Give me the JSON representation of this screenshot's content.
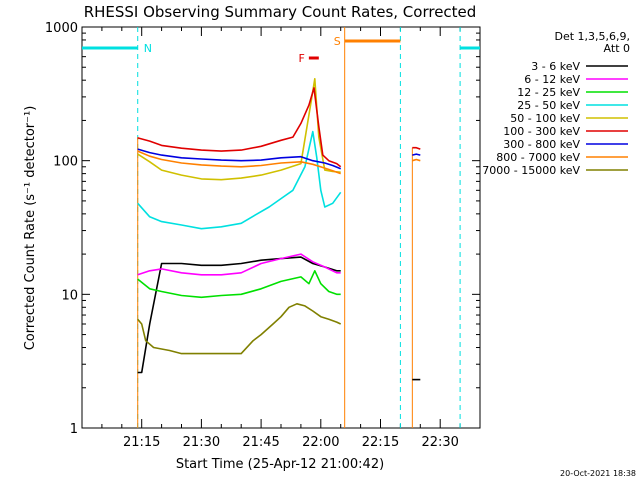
{
  "chart_data": {
    "type": "line",
    "title": "RHESSI Observing Summary Count Rates, Corrected",
    "xlabel": "Start Time (25-Apr-12 21:00:42)",
    "ylabel": "Corrected Count Rate (s⁻¹ detector⁻¹)",
    "yscale": "log",
    "ylim": [
      1,
      1000
    ],
    "xlim_minutes": [
      0,
      100
    ],
    "x_tick_labels": [
      "21:15",
      "21:30",
      "21:45",
      "22:00",
      "22:15",
      "22:30"
    ],
    "x_tick_minutes": [
      15,
      30,
      45,
      60,
      75,
      90
    ],
    "y_tick_labels": [
      "1",
      "10",
      "100",
      "1000"
    ],
    "y_tick_values": [
      1,
      10,
      100,
      1000
    ],
    "legend_title": [
      "Det 1,3,5,6,9,",
      "Att 0"
    ],
    "legend_position": "right",
    "footer": "20-Oct-2021 18:38",
    "flags": [
      {
        "label": "N",
        "color": "#00e0e0",
        "type": "night",
        "segments": [
          [
            0,
            14
          ],
          [
            95,
            100
          ]
        ],
        "boundaries": [
          14,
          80,
          95
        ]
      },
      {
        "label": "F",
        "color": "#e00000",
        "type": "flare",
        "segments": [
          [
            57,
            59.5
          ]
        ]
      },
      {
        "label": "S",
        "color": "#ff8000",
        "type": "saa",
        "segments": [
          [
            66,
            80
          ]
        ]
      }
    ],
    "series": [
      {
        "name": "3 - 6 keV",
        "color": "#000000",
        "points": [
          [
            14,
            2.6
          ],
          [
            15,
            2.6
          ],
          [
            17,
            6
          ],
          [
            20,
            17
          ],
          [
            25,
            17
          ],
          [
            30,
            16.5
          ],
          [
            35,
            16.5
          ],
          [
            40,
            17
          ],
          [
            45,
            18
          ],
          [
            50,
            18.5
          ],
          [
            55,
            19
          ],
          [
            58,
            17
          ],
          [
            61,
            16
          ],
          [
            64,
            15
          ],
          [
            65,
            15
          ]
        ],
        "points2": [
          [
            83,
            2.3
          ],
          [
            84,
            2.3
          ],
          [
            85,
            2.3
          ]
        ]
      },
      {
        "name": "6 - 12 keV",
        "color": "#ff00ff",
        "points": [
          [
            14,
            14
          ],
          [
            17,
            15
          ],
          [
            20,
            15.5
          ],
          [
            25,
            14.5
          ],
          [
            30,
            14
          ],
          [
            35,
            14
          ],
          [
            40,
            14.5
          ],
          [
            45,
            17
          ],
          [
            50,
            18.5
          ],
          [
            55,
            20
          ],
          [
            58,
            17.5
          ],
          [
            61,
            16
          ],
          [
            64,
            14.5
          ],
          [
            65,
            14.5
          ]
        ]
      },
      {
        "name": "12 - 25 keV",
        "color": "#00e000",
        "points": [
          [
            14,
            13
          ],
          [
            17,
            11
          ],
          [
            20,
            10.5
          ],
          [
            25,
            9.8
          ],
          [
            30,
            9.5
          ],
          [
            35,
            9.8
          ],
          [
            40,
            10
          ],
          [
            45,
            11
          ],
          [
            50,
            12.5
          ],
          [
            55,
            13.5
          ],
          [
            57,
            12
          ],
          [
            58.5,
            15
          ],
          [
            60,
            12
          ],
          [
            62,
            10.5
          ],
          [
            64,
            10
          ],
          [
            65,
            10
          ]
        ]
      },
      {
        "name": "25 - 50 keV",
        "color": "#00e0e0",
        "points": [
          [
            14,
            48
          ],
          [
            17,
            38
          ],
          [
            20,
            35
          ],
          [
            25,
            33
          ],
          [
            30,
            31
          ],
          [
            35,
            32
          ],
          [
            40,
            34
          ],
          [
            44,
            40
          ],
          [
            47,
            45
          ],
          [
            50,
            52
          ],
          [
            53,
            60
          ],
          [
            56,
            90
          ],
          [
            58,
            165
          ],
          [
            59,
            105
          ],
          [
            60,
            60
          ],
          [
            61,
            45
          ],
          [
            63,
            48
          ],
          [
            65,
            58
          ]
        ]
      },
      {
        "name": "50 - 100 keV",
        "color": "#d0c000",
        "points": [
          [
            14,
            112
          ],
          [
            17,
            98
          ],
          [
            20,
            85
          ],
          [
            25,
            78
          ],
          [
            30,
            73
          ],
          [
            35,
            72
          ],
          [
            40,
            74
          ],
          [
            45,
            78
          ],
          [
            50,
            85
          ],
          [
            55,
            95
          ],
          [
            57.5,
            270
          ],
          [
            58.5,
            410
          ],
          [
            59.5,
            150
          ],
          [
            61,
            85
          ],
          [
            63,
            83
          ],
          [
            65,
            82
          ]
        ]
      },
      {
        "name": "100 - 300 keV",
        "color": "#e00000",
        "points": [
          [
            14,
            148
          ],
          [
            17,
            140
          ],
          [
            20,
            130
          ],
          [
            25,
            124
          ],
          [
            30,
            120
          ],
          [
            35,
            118
          ],
          [
            40,
            120
          ],
          [
            45,
            128
          ],
          [
            50,
            142
          ],
          [
            53,
            150
          ],
          [
            55,
            190
          ],
          [
            57,
            260
          ],
          [
            58.3,
            350
          ],
          [
            59.5,
            180
          ],
          [
            60.5,
            110
          ],
          [
            62,
            100
          ],
          [
            64,
            95
          ],
          [
            65,
            90
          ]
        ],
        "points2": [
          [
            83,
            125
          ],
          [
            84,
            125
          ],
          [
            85,
            122
          ]
        ]
      },
      {
        "name": "300 - 800 keV",
        "color": "#0000e0",
        "points": [
          [
            14,
            122
          ],
          [
            17,
            115
          ],
          [
            20,
            110
          ],
          [
            25,
            105
          ],
          [
            30,
            103
          ],
          [
            35,
            101
          ],
          [
            40,
            100
          ],
          [
            45,
            101
          ],
          [
            50,
            105
          ],
          [
            55,
            107
          ],
          [
            58,
            100
          ],
          [
            61,
            96
          ],
          [
            63,
            92
          ],
          [
            65,
            87
          ]
        ],
        "points2": [
          [
            83,
            110
          ],
          [
            84,
            112
          ],
          [
            85,
            110
          ]
        ]
      },
      {
        "name": "800 - 7000 keV",
        "color": "#ff8000",
        "points": [
          [
            14,
            118
          ],
          [
            17,
            108
          ],
          [
            20,
            102
          ],
          [
            25,
            96
          ],
          [
            30,
            93
          ],
          [
            35,
            91
          ],
          [
            40,
            90
          ],
          [
            45,
            92
          ],
          [
            50,
            96
          ],
          [
            55,
            98
          ],
          [
            58,
            94
          ],
          [
            61,
            88
          ],
          [
            63,
            84
          ],
          [
            65,
            80
          ]
        ],
        "points2": [
          [
            83,
            100
          ],
          [
            84,
            102
          ],
          [
            85,
            100
          ]
        ]
      },
      {
        "name": "7000 - 15000 keV",
        "color": "#808000",
        "points": [
          [
            14,
            6.5
          ],
          [
            15,
            6
          ],
          [
            16,
            4.5
          ],
          [
            18,
            4
          ],
          [
            22,
            3.8
          ],
          [
            25,
            3.6
          ],
          [
            30,
            3.6
          ],
          [
            35,
            3.6
          ],
          [
            40,
            3.6
          ],
          [
            43,
            4.5
          ],
          [
            45,
            5
          ],
          [
            48,
            6
          ],
          [
            50,
            6.8
          ],
          [
            52,
            8
          ],
          [
            54,
            8.5
          ],
          [
            56,
            8.2
          ],
          [
            58,
            7.5
          ],
          [
            60,
            6.8
          ],
          [
            62,
            6.5
          ],
          [
            64,
            6.2
          ],
          [
            65,
            6
          ]
        ]
      }
    ]
  }
}
